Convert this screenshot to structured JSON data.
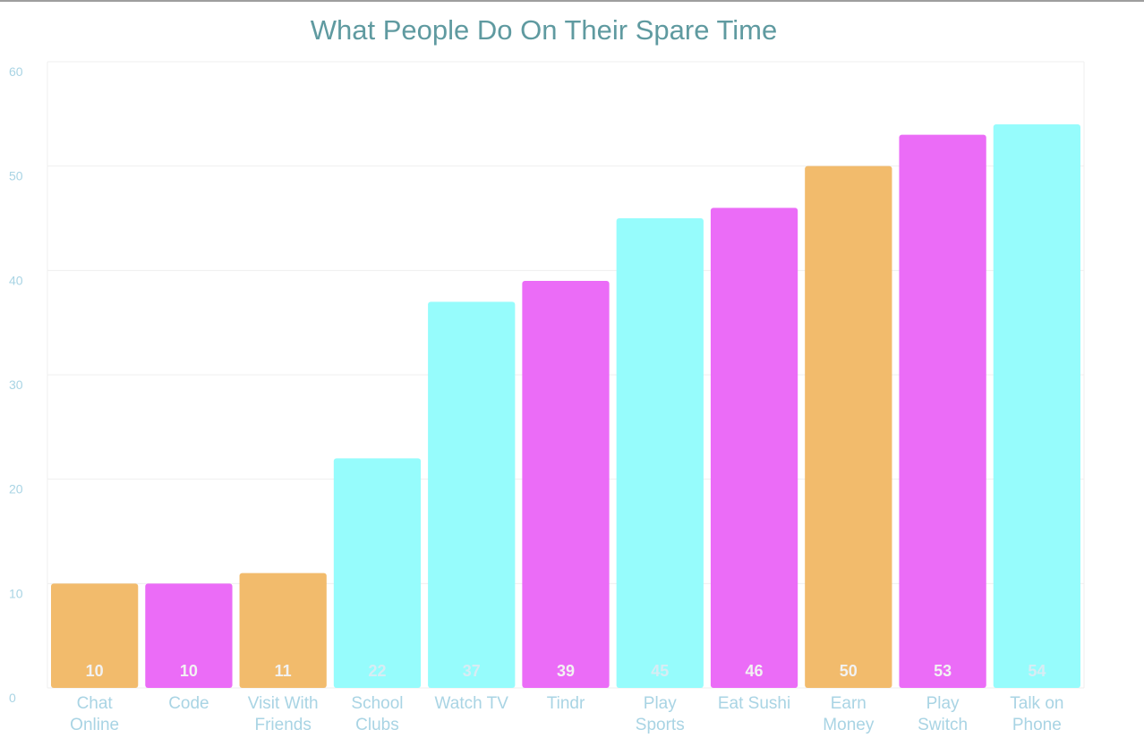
{
  "chart_data": {
    "type": "bar",
    "title": "What People Do On Their Spare Time",
    "categories": [
      [
        "Chat",
        "Online"
      ],
      [
        "Code"
      ],
      [
        "Visit With",
        "Friends"
      ],
      [
        "School",
        "Clubs"
      ],
      [
        "Watch TV"
      ],
      [
        "Tindr"
      ],
      [
        "Play",
        "Sports"
      ],
      [
        "Eat Sushi"
      ],
      [
        "Earn",
        "Money"
      ],
      [
        "Play",
        "Switch"
      ],
      [
        "Talk on",
        "Phone"
      ]
    ],
    "values": [
      10,
      10,
      11,
      22,
      37,
      39,
      45,
      46,
      50,
      53,
      54
    ],
    "bar_colors": [
      "#f2bb6c",
      "#eb6cf7",
      "#f2bb6c",
      "#96fcfc",
      "#96fcfc",
      "#eb6cf7",
      "#96fcfc",
      "#eb6cf7",
      "#f2bb6c",
      "#eb6cf7",
      "#96fcfc"
    ],
    "ylim": [
      0,
      60
    ],
    "yticks": [
      0,
      10,
      20,
      30,
      40,
      50,
      60
    ],
    "grid": true,
    "data_labels": true,
    "colors": {
      "title": "#5f9aa0",
      "tick": "#a9d4e4",
      "grid": "#efefef",
      "label_on_light": "#d8ecf3",
      "label_on_dark": "#f2f2f2"
    }
  }
}
